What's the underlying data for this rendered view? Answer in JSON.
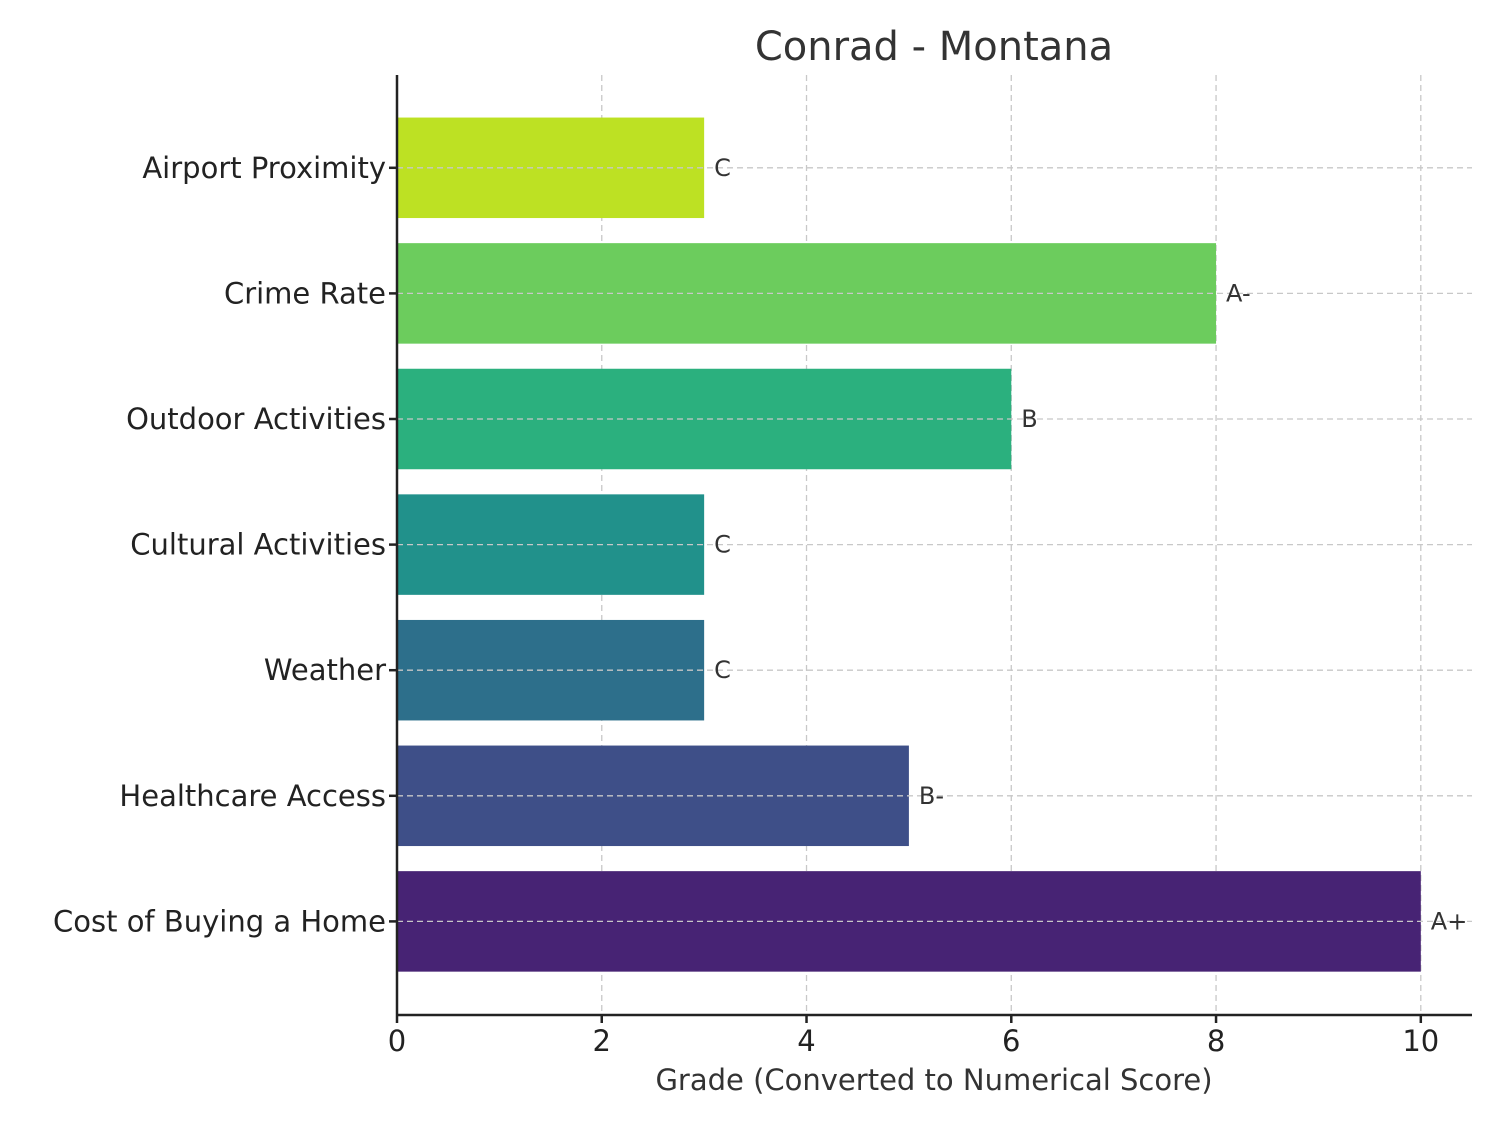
{
  "chart_data": {
    "type": "bar",
    "orientation": "horizontal",
    "title": "Conrad - Montana",
    "xlabel": "Grade (Converted to Numerical Score)",
    "ylabel": "",
    "xlim": [
      0,
      10.5
    ],
    "xticks": [
      0,
      2,
      4,
      6,
      8,
      10
    ],
    "grid": true,
    "categories": [
      "Cost of Buying a Home",
      "Healthcare Access",
      "Weather",
      "Cultural Activities",
      "Outdoor Activities",
      "Crime Rate",
      "Airport Proximity"
    ],
    "values": [
      10,
      5,
      3,
      3,
      6,
      8,
      3
    ],
    "grades": [
      "A+",
      "B-",
      "C",
      "C",
      "B",
      "A-",
      "C"
    ],
    "colors": [
      "#472374",
      "#3e4f88",
      "#2d6f8b",
      "#21918b",
      "#2bb07e",
      "#6ccc5d",
      "#bde123"
    ]
  }
}
